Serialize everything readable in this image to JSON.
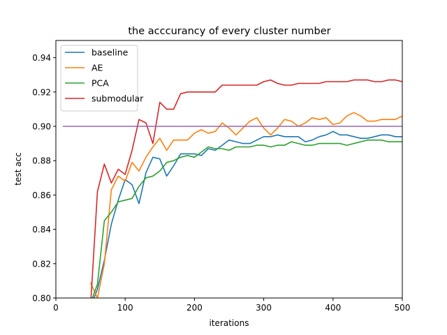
{
  "chart_data": {
    "type": "line",
    "title": "the acccurancy of every cluster number",
    "xlabel": "iterations",
    "ylabel": "test acc",
    "xlim": [
      0,
      500
    ],
    "ylim": [
      0.8,
      0.95
    ],
    "xticks": [
      0,
      100,
      200,
      300,
      400,
      500
    ],
    "yticks": [
      0.8,
      0.82,
      0.84,
      0.86,
      0.88,
      0.9,
      0.92,
      0.94
    ],
    "grid": false,
    "legend_position": "top-left",
    "series": [
      {
        "name": "baseline",
        "color": "#1f77b4",
        "x": [
          50,
          60,
          70,
          80,
          90,
          100,
          110,
          120,
          130,
          140,
          150,
          160,
          170,
          180,
          190,
          200,
          210,
          220,
          230,
          240,
          250,
          260,
          270,
          280,
          290,
          300,
          310,
          320,
          330,
          340,
          350,
          360,
          370,
          380,
          390,
          400,
          410,
          420,
          430,
          440,
          450,
          460,
          470,
          480,
          490,
          500
        ],
        "y": [
          0.795,
          0.805,
          0.822,
          0.843,
          0.857,
          0.869,
          0.866,
          0.855,
          0.873,
          0.882,
          0.881,
          0.871,
          0.877,
          0.884,
          0.884,
          0.884,
          0.883,
          0.887,
          0.886,
          0.889,
          0.892,
          0.891,
          0.89,
          0.89,
          0.892,
          0.894,
          0.894,
          0.895,
          0.894,
          0.894,
          0.894,
          0.891,
          0.892,
          0.894,
          0.895,
          0.897,
          0.895,
          0.895,
          0.894,
          0.893,
          0.893,
          0.894,
          0.895,
          0.895,
          0.894,
          0.894
        ]
      },
      {
        "name": "AE",
        "color": "#ff7f0e",
        "x": [
          50,
          60,
          70,
          80,
          90,
          100,
          110,
          120,
          130,
          140,
          150,
          160,
          170,
          180,
          190,
          200,
          210,
          220,
          230,
          240,
          250,
          260,
          270,
          280,
          290,
          300,
          310,
          320,
          330,
          340,
          350,
          360,
          370,
          380,
          390,
          400,
          410,
          420,
          430,
          440,
          450,
          460,
          470,
          480,
          490,
          500
        ],
        "y": [
          0.809,
          0.8,
          0.82,
          0.863,
          0.871,
          0.868,
          0.879,
          0.874,
          0.882,
          0.888,
          0.893,
          0.886,
          0.892,
          0.892,
          0.892,
          0.896,
          0.898,
          0.896,
          0.897,
          0.902,
          0.899,
          0.895,
          0.899,
          0.903,
          0.905,
          0.899,
          0.895,
          0.899,
          0.904,
          0.903,
          0.9,
          0.902,
          0.905,
          0.904,
          0.905,
          0.901,
          0.902,
          0.906,
          0.908,
          0.906,
          0.903,
          0.903,
          0.904,
          0.904,
          0.904,
          0.906
        ]
      },
      {
        "name": "PCA",
        "color": "#2ca02c",
        "x": [
          50,
          60,
          70,
          80,
          90,
          100,
          110,
          120,
          130,
          140,
          150,
          160,
          170,
          180,
          190,
          200,
          210,
          220,
          230,
          240,
          250,
          260,
          270,
          280,
          290,
          300,
          310,
          320,
          330,
          340,
          350,
          360,
          370,
          380,
          390,
          400,
          410,
          420,
          430,
          440,
          450,
          460,
          470,
          480,
          490,
          500
        ],
        "y": [
          0.797,
          0.808,
          0.845,
          0.85,
          0.856,
          0.857,
          0.858,
          0.865,
          0.87,
          0.871,
          0.874,
          0.879,
          0.88,
          0.882,
          0.883,
          0.882,
          0.885,
          0.888,
          0.887,
          0.887,
          0.886,
          0.888,
          0.888,
          0.888,
          0.889,
          0.889,
          0.888,
          0.889,
          0.889,
          0.891,
          0.89,
          0.889,
          0.889,
          0.89,
          0.89,
          0.89,
          0.89,
          0.889,
          0.89,
          0.891,
          0.892,
          0.892,
          0.892,
          0.891,
          0.891,
          0.891
        ]
      },
      {
        "name": "submodular",
        "color": "#d62728",
        "x": [
          50,
          60,
          70,
          80,
          90,
          100,
          110,
          120,
          130,
          140,
          150,
          160,
          170,
          180,
          190,
          200,
          210,
          220,
          230,
          240,
          250,
          260,
          270,
          280,
          290,
          300,
          310,
          320,
          330,
          340,
          350,
          360,
          370,
          380,
          390,
          400,
          410,
          420,
          430,
          440,
          450,
          460,
          470,
          480,
          490,
          500
        ],
        "y": [
          0.795,
          0.862,
          0.878,
          0.867,
          0.875,
          0.872,
          0.886,
          0.904,
          0.902,
          0.89,
          0.914,
          0.91,
          0.91,
          0.919,
          0.92,
          0.92,
          0.92,
          0.92,
          0.92,
          0.924,
          0.924,
          0.924,
          0.924,
          0.924,
          0.924,
          0.926,
          0.927,
          0.925,
          0.924,
          0.924,
          0.925,
          0.925,
          0.925,
          0.925,
          0.926,
          0.926,
          0.926,
          0.926,
          0.927,
          0.927,
          0.927,
          0.926,
          0.926,
          0.927,
          0.927,
          0.926
        ]
      },
      {
        "name": "",
        "color": "#9467bd",
        "x": [
          10,
          500
        ],
        "y": [
          0.9,
          0.9
        ]
      }
    ]
  }
}
